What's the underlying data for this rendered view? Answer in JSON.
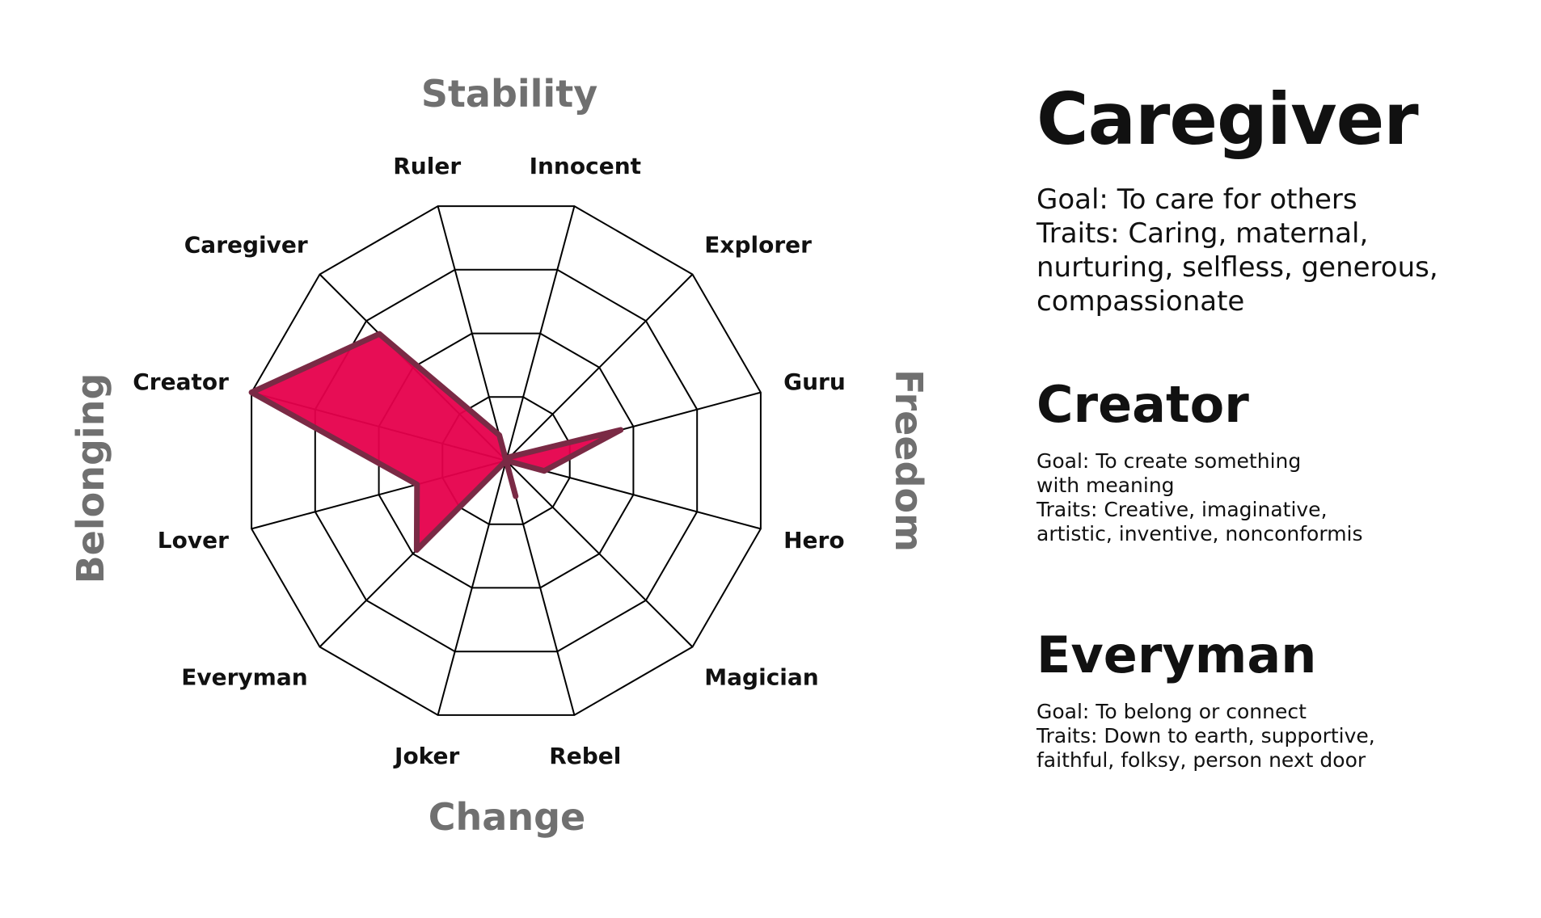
{
  "chart_data": {
    "type": "radar",
    "axes": [
      "Innocent",
      "Explorer",
      "Guru",
      "Hero",
      "Magician",
      "Rebel",
      "Joker",
      "Everyman",
      "Lover",
      "Creator",
      "Caregiver",
      "Ruler"
    ],
    "values": [
      0,
      0.2,
      4.5,
      1.5,
      0,
      1.4,
      0,
      4.8,
      3.5,
      10,
      6.8,
      1
    ],
    "rmax": 10,
    "rings": 4,
    "quadrants": {
      "top": "Stability",
      "right": "Freedom",
      "bottom": "Change",
      "left": "Belonging"
    },
    "colors": {
      "fill": "#e6004c",
      "stroke": "#7a2a45",
      "grid": "#000000",
      "quadrant_text": "#707070"
    }
  },
  "panels": [
    {
      "title": "Caregiver",
      "lines": [
        "Goal: To care for others",
        "Traits: Caring, maternal,",
        "nurturing, selfless, generous,",
        "compassionate"
      ]
    },
    {
      "title": "Creator",
      "lines": [
        "Goal: To create something",
        "with meaning",
        "Traits: Creative, imaginative,",
        "artistic, inventive, nonconformis"
      ]
    },
    {
      "title": "Everyman",
      "lines": [
        "Goal: To belong or connect",
        "Traits: Down to earth, supportive,",
        "faithful, folksy, person next door"
      ]
    }
  ]
}
